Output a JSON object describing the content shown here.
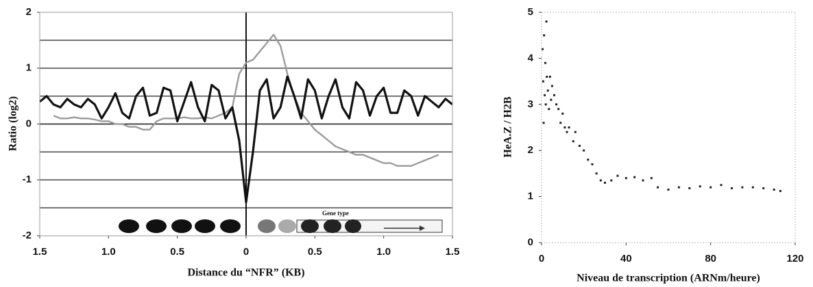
{
  "chart_data": [
    {
      "type": "line",
      "x_label": "Distance du “NFR” (KB)",
      "y_label": "Ratio (log2)",
      "annotation": "Gene type",
      "xlim": [
        -1.5,
        1.5
      ],
      "ylim": [
        -2,
        2
      ],
      "xticks": [
        {
          "value": -1.5,
          "label": "1.5"
        },
        {
          "value": -1,
          "label": "1.0"
        },
        {
          "value": -0.5,
          "label": "0.5"
        },
        0,
        0.5,
        {
          "value": 1,
          "label": "1.0"
        },
        1.5
      ],
      "yticks": [
        -2,
        -1,
        0,
        1,
        2
      ],
      "grid_lines": [
        -1.5,
        -1,
        -0.5,
        0.5,
        1,
        1.5
      ],
      "x": [
        -1.5,
        -1.45,
        -1.4,
        -1.35,
        -1.3,
        -1.25,
        -1.2,
        -1.15,
        -1.1,
        -1.05,
        -1,
        -0.95,
        -0.9,
        -0.85,
        -0.8,
        -0.75,
        -0.7,
        -0.65,
        -0.6,
        -0.55,
        -0.5,
        -0.45,
        -0.4,
        -0.35,
        -0.3,
        -0.25,
        -0.2,
        -0.15,
        -0.1,
        -0.05,
        0,
        0.05,
        0.1,
        0.15,
        0.2,
        0.25,
        0.3,
        0.35,
        0.4,
        0.45,
        0.5,
        0.55,
        0.6,
        0.65,
        0.7,
        0.75,
        0.8,
        0.85,
        0.9,
        0.95,
        1,
        1.05,
        1.1,
        1.15,
        1.2,
        1.25,
        1.3,
        1.35,
        1.4,
        1.45,
        1.5
      ],
      "series": [
        {
          "color": "#111111",
          "values": [
            0.4,
            0.5,
            0.35,
            0.3,
            0.45,
            0.35,
            0.3,
            0.45,
            0.35,
            0.1,
            0.3,
            0.55,
            0.2,
            0.1,
            0.5,
            0.65,
            0.15,
            0.2,
            0.65,
            0.6,
            0.05,
            0.4,
            0.75,
            0.3,
            0.05,
            0.7,
            0.6,
            0.1,
            0.3,
            -0.3,
            -1.4,
            -0.5,
            0.6,
            0.8,
            0.1,
            0.3,
            0.85,
            0.5,
            0.1,
            0.8,
            0.6,
            0.1,
            0.5,
            0.8,
            0.3,
            0.1,
            0.75,
            0.6,
            0.15,
            0.5,
            0.65,
            0.2,
            0.2,
            0.6,
            0.5,
            0.15,
            0.5,
            0.4,
            0.3,
            0.45,
            0.35
          ]
        },
        {
          "color": "#9a9a9a",
          "values": [
            null,
            null,
            0.15,
            0.1,
            0.1,
            0.12,
            0.1,
            0.1,
            0.08,
            0.05,
            0.05,
            0,
            0,
            -0.05,
            -0.05,
            -0.1,
            -0.1,
            0.05,
            0.1,
            0.1,
            0.1,
            0.12,
            0.1,
            0.1,
            0.12,
            0.1,
            0.15,
            0.2,
            0.3,
            0.9,
            1.1,
            1.15,
            1.3,
            1.45,
            1.6,
            1.4,
            0.9,
            0.5,
            0.2,
            0.05,
            -0.1,
            -0.2,
            -0.3,
            -0.4,
            -0.45,
            -0.5,
            -0.55,
            -0.55,
            -0.6,
            -0.65,
            -0.7,
            -0.7,
            -0.75,
            -0.75,
            -0.75,
            -0.7,
            -0.65,
            -0.6,
            -0.55,
            null,
            null
          ]
        }
      ]
    },
    {
      "type": "scatter",
      "x_label": "Niveau de transcription (ARNm/heure)",
      "y_label": "HeA.Z / H2B",
      "xlim": [
        0,
        120
      ],
      "ylim": [
        0,
        5
      ],
      "xticks": [
        0,
        40,
        80,
        120
      ],
      "yticks": [
        0,
        1,
        2,
        3,
        4,
        5
      ],
      "color": "#222222",
      "x": [
        0.5,
        0.8,
        1,
        1.2,
        1.5,
        1.8,
        2,
        2.3,
        2.5,
        3,
        3.5,
        4,
        4.5,
        5,
        6,
        7,
        8,
        9,
        10,
        11,
        12,
        13,
        15,
        16,
        18,
        20,
        22,
        24,
        26,
        28,
        30,
        33,
        36,
        40,
        44,
        48,
        52,
        55,
        60,
        65,
        70,
        75,
        80,
        85,
        90,
        95,
        100,
        105,
        110,
        113
      ],
      "values": [
        4.2,
        3.5,
        2.6,
        4.5,
        3.2,
        3.9,
        3.0,
        4.8,
        3.6,
        3.3,
        2.9,
        3.6,
        3.1,
        3.4,
        3.2,
        3.0,
        2.9,
        2.6,
        2.8,
        2.5,
        2.4,
        2.5,
        2.2,
        2.4,
        2.1,
        2.0,
        1.8,
        1.7,
        1.5,
        1.35,
        1.3,
        1.35,
        1.45,
        1.4,
        1.42,
        1.35,
        1.4,
        1.2,
        1.15,
        1.2,
        1.18,
        1.22,
        1.2,
        1.25,
        1.18,
        1.2,
        1.2,
        1.18,
        1.15,
        1.12
      ]
    }
  ]
}
